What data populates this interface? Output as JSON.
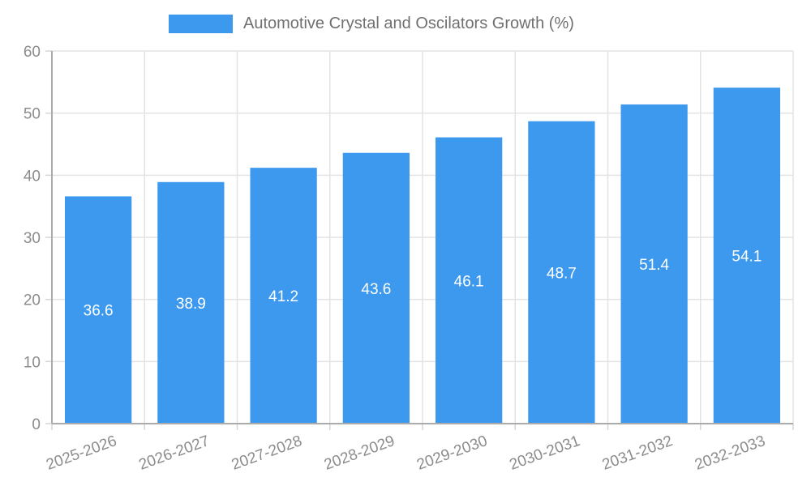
{
  "legend": {
    "title": "Automotive Crystal and Oscilators Growth (%)"
  },
  "chart_data": {
    "type": "bar",
    "title": "Automotive Crystal and Oscilators Growth (%)",
    "categories": [
      "2025-2026",
      "2026-2027",
      "2027-2028",
      "2028-2029",
      "2029-2030",
      "2030-2031",
      "2031-2032",
      "2032-2033"
    ],
    "values": [
      36.6,
      38.9,
      41.2,
      43.6,
      46.1,
      48.7,
      51.4,
      54.1
    ],
    "value_labels": [
      "36.6",
      "38.9",
      "41.2",
      "43.6",
      "46.1",
      "48.7",
      "51.4",
      "54.1"
    ],
    "xlabel": "",
    "ylabel": "",
    "ylim": [
      0,
      60
    ],
    "yticks": [
      0,
      10,
      20,
      30,
      40,
      50,
      60
    ],
    "ytick_labels": [
      "0",
      "10",
      "20",
      "30",
      "40",
      "50",
      "60"
    ],
    "x_tick_rotation": -20,
    "grid": true,
    "legend_position": "top",
    "bar_color": "#3D99EE",
    "value_label_color": "#FFFFFF",
    "grid_color": "#E3E3E3",
    "tick_mark_color": "#D6D6D6",
    "axis_color": "#ABABAB",
    "tick_label_color": "#8C8C8C"
  }
}
